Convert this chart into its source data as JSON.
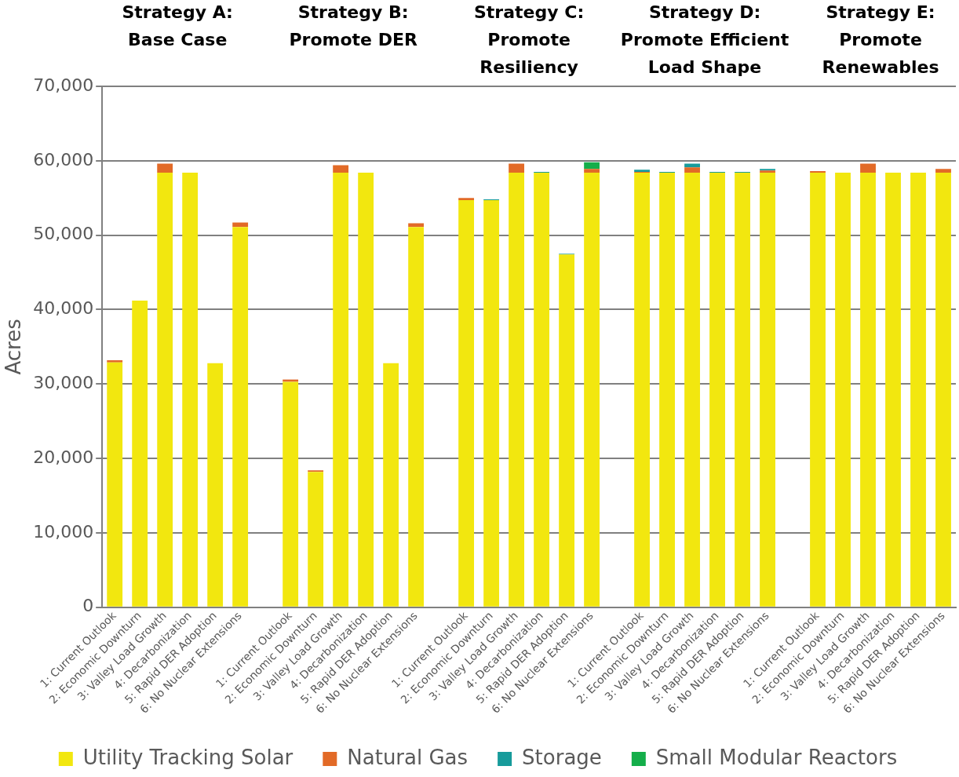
{
  "chart_data": {
    "type": "bar",
    "stacked": true,
    "ylabel": "Acres",
    "annotations": [
      "Strategy A:\nBase Case",
      "Strategy B:\nPromote DER",
      "Strategy C:\nPromote\nResiliency",
      "Strategy D:\nPromote Efficient\nLoad Shape",
      "Strategy E:\nPromote\nRenewables"
    ],
    "categories": [
      "1: Current Outlook",
      "2: Economic Downturn",
      "3: Valley Load Growth",
      "4: Decarbonization",
      "5: Rapid DER Adoption",
      "6: No Nuclear Extensions",
      null,
      "1: Current Outlook",
      "2: Economic Downturn",
      "3: Valley Load Growth",
      "4: Decarbonization",
      "5: Rapid DER Adoption",
      "6: No Nuclear Extensions",
      null,
      "1: Current Outlook",
      "2: Economic Downturn",
      "3: Valley Load Growth",
      "4: Decarbonization",
      "5: Rapid DER Adoption",
      "6: No Nuclear Extensions",
      null,
      "1: Current Outlook",
      "2: Economic Downturn",
      "3: Valley Load Growth",
      "4: Decarbonization",
      "5: Rapid DER Adoption",
      "6: No Nuclear Extensions",
      null,
      "1: Current Outlook",
      "2: Economic Downturn",
      "3: Valley Load Growth",
      "4: Decarbonization",
      "5: Rapid DER Adoption",
      "6: No Nuclear Extensions"
    ],
    "series": [
      {
        "name": "Utility Tracking Solar",
        "color": "#f2e70f",
        "values": [
          32900,
          41200,
          58400,
          58400,
          32800,
          51100,
          null,
          30300,
          18200,
          58400,
          58400,
          32800,
          51100,
          null,
          54700,
          54700,
          58400,
          58400,
          47400,
          58400,
          null,
          58400,
          58400,
          58400,
          58400,
          58400,
          58400,
          null,
          58400,
          58400,
          58400,
          58400,
          58400,
          58400
        ]
      },
      {
        "name": "Natural Gas",
        "color": "#e26a27",
        "values": [
          300,
          0,
          1200,
          0,
          0,
          600,
          null,
          300,
          200,
          1000,
          0,
          0,
          500,
          null,
          300,
          0,
          1200,
          0,
          0,
          500,
          null,
          100,
          0,
          700,
          0,
          0,
          300,
          null,
          200,
          0,
          1200,
          0,
          0,
          500
        ]
      },
      {
        "name": "Storage",
        "color": "#179b9b",
        "values": [
          0,
          0,
          0,
          0,
          0,
          0,
          null,
          0,
          0,
          0,
          0,
          0,
          0,
          null,
          0,
          100,
          0,
          100,
          100,
          0,
          null,
          300,
          100,
          500,
          100,
          100,
          200,
          null,
          0,
          0,
          0,
          0,
          0,
          0
        ]
      },
      {
        "name": "Small Modular Reactors",
        "color": "#14ae4a",
        "values": [
          0,
          0,
          0,
          0,
          0,
          0,
          null,
          0,
          0,
          0,
          0,
          0,
          0,
          null,
          0,
          0,
          0,
          0,
          0,
          900,
          null,
          0,
          0,
          0,
          0,
          0,
          0,
          null,
          0,
          0,
          0,
          0,
          0,
          0
        ]
      }
    ],
    "ylim": [
      0,
      70000
    ],
    "yticks": [
      0,
      {
        "value": 10000,
        "label": "10,000"
      },
      {
        "value": 20000,
        "label": "20,000"
      },
      {
        "value": 30000,
        "label": "30,000"
      },
      {
        "value": 40000,
        "label": "40,000"
      },
      {
        "value": 50000,
        "label": "50,000"
      },
      {
        "value": 60000,
        "label": "60,000"
      },
      {
        "value": 70000,
        "label": "70,000"
      }
    ],
    "grid": "y",
    "legend": "bottom"
  }
}
